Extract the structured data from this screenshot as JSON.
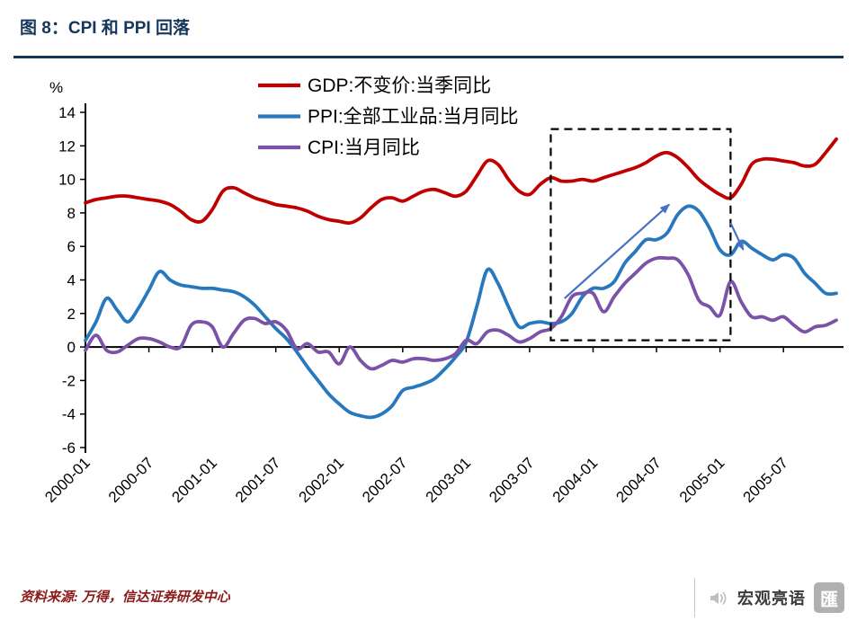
{
  "page": {
    "title": "图 8：CPI 和 PPI 回落",
    "source_note": "资料来源: 万得，信达证券研发中心",
    "accent_color": "#16365C",
    "brand": {
      "name": "宏观亮语",
      "icon": "speaker-icon",
      "logo_glyph": "匯"
    }
  },
  "chart_data": {
    "type": "line",
    "title": "",
    "xlabel": "",
    "ylabel": "%",
    "ylim": [
      -6,
      14
    ],
    "ytick_step": 2,
    "grid": false,
    "legend_position": "top-center",
    "x_months": 72,
    "x_start": "2000-01",
    "x_tick_labels": [
      "2000-01",
      "2000-07",
      "2001-01",
      "2001-07",
      "2002-01",
      "2002-07",
      "2003-01",
      "2003-07",
      "2004-01",
      "2004-07",
      "2005-01",
      "2005-07"
    ],
    "series": [
      {
        "name": "GDP:不变价:当季同比",
        "color": "#C00000",
        "values": [
          8.6,
          8.8,
          8.9,
          9.0,
          9.0,
          8.9,
          8.8,
          8.7,
          8.5,
          8.1,
          7.6,
          7.5,
          8.2,
          9.3,
          9.5,
          9.2,
          8.9,
          8.7,
          8.5,
          8.4,
          8.3,
          8.1,
          7.8,
          7.6,
          7.5,
          7.4,
          7.7,
          8.3,
          8.8,
          8.9,
          8.7,
          9.0,
          9.3,
          9.4,
          9.2,
          9.0,
          9.3,
          10.2,
          11.1,
          10.9,
          10.0,
          9.3,
          9.1,
          9.7,
          10.1,
          9.9,
          9.9,
          10.0,
          9.9,
          10.1,
          10.3,
          10.5,
          10.7,
          11.0,
          11.4,
          11.6,
          11.3,
          10.7,
          10.0,
          9.5,
          9.1,
          8.9,
          9.7,
          10.9,
          11.2,
          11.2,
          11.1,
          11.0,
          10.8,
          10.9,
          11.6,
          12.4
        ]
      },
      {
        "name": "PPI:全部工业品:当月同比",
        "color": "#2878BE",
        "values": [
          0.4,
          1.5,
          2.9,
          2.2,
          1.5,
          2.3,
          3.4,
          4.5,
          4.0,
          3.7,
          3.6,
          3.5,
          3.5,
          3.4,
          3.3,
          3.0,
          2.5,
          1.8,
          1.1,
          0.5,
          -0.3,
          -1.2,
          -2.0,
          -2.8,
          -3.4,
          -3.9,
          -4.1,
          -4.2,
          -4.0,
          -3.5,
          -2.6,
          -2.4,
          -2.2,
          -1.9,
          -1.3,
          -0.6,
          0.3,
          2.4,
          4.6,
          3.8,
          2.4,
          1.2,
          1.4,
          1.5,
          1.4,
          1.5,
          2.0,
          3.0,
          3.5,
          3.5,
          3.9,
          5.0,
          5.7,
          6.4,
          6.4,
          6.8,
          7.9,
          8.4,
          8.1,
          7.1,
          5.8,
          5.5,
          6.3,
          5.9,
          5.5,
          5.2,
          5.5,
          5.3,
          4.4,
          3.8,
          3.2,
          3.2
        ]
      },
      {
        "name": "CPI:当月同比",
        "color": "#7A52A8",
        "values": [
          -0.2,
          0.7,
          -0.2,
          -0.3,
          0.1,
          0.5,
          0.5,
          0.3,
          0.0,
          0.0,
          1.3,
          1.5,
          1.2,
          0.0,
          0.8,
          1.6,
          1.7,
          1.4,
          1.5,
          1.0,
          -0.1,
          0.2,
          -0.3,
          -0.3,
          -1.0,
          0.0,
          -0.8,
          -1.3,
          -1.1,
          -0.8,
          -0.9,
          -0.7,
          -0.7,
          -0.8,
          -0.7,
          -0.4,
          0.4,
          0.2,
          0.9,
          1.0,
          0.7,
          0.3,
          0.5,
          0.9,
          1.1,
          1.8,
          3.0,
          3.2,
          3.2,
          2.1,
          3.0,
          3.8,
          4.4,
          5.0,
          5.3,
          5.3,
          5.2,
          4.3,
          2.8,
          2.4,
          1.9,
          3.9,
          2.7,
          1.8,
          1.8,
          1.6,
          1.8,
          1.3,
          0.9,
          1.2,
          1.3,
          1.6
        ]
      }
    ],
    "annotations": {
      "dashed_box": {
        "x_start_month": 44,
        "x_end_month": 61,
        "y_bottom": 0.4,
        "y_top": 13.0
      },
      "arrows": [
        {
          "from_month": 45.3,
          "from_value": 2.9,
          "to_month": 55.2,
          "to_value": 8.5
        },
        {
          "from_month": 61.0,
          "from_value": 7.4,
          "to_month": 62.2,
          "to_value": 5.8
        }
      ],
      "arrow_color": "#4472C4"
    }
  }
}
